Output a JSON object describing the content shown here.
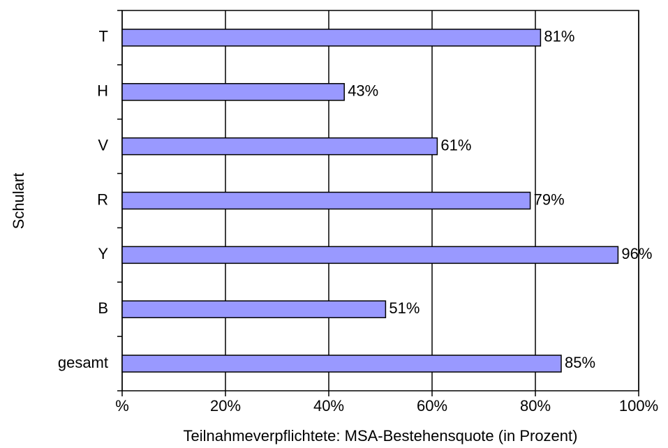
{
  "chart_data": {
    "type": "bar",
    "orientation": "horizontal",
    "xlabel": "Teilnahmeverpflichtete: MSA-Bestehensquote (in Prozent)",
    "ylabel": "Schulart",
    "categories": [
      "T",
      "H",
      "V",
      "R",
      "Y",
      "B",
      "gesamt"
    ],
    "values": [
      81,
      43,
      61,
      79,
      96,
      51,
      85
    ],
    "value_labels": [
      "81%",
      "43%",
      "61%",
      "79%",
      "96%",
      "51%",
      "85%"
    ],
    "color": "#9999ff",
    "xlim": [
      0,
      100
    ],
    "xticks": [
      {
        "value": 0,
        "label": "%"
      },
      {
        "value": 20,
        "label": "20%"
      },
      {
        "value": 40,
        "label": "40%"
      },
      {
        "value": 60,
        "label": "60%"
      },
      {
        "value": 80,
        "label": "80%"
      },
      {
        "value": 100,
        "label": "100%"
      }
    ],
    "grid": true
  }
}
